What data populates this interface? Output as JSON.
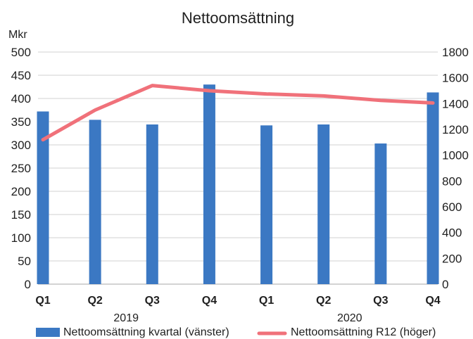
{
  "chart_data": {
    "type": "bar+line",
    "title": "Nettoomsättning",
    "y_left_unit_label": "Mkr",
    "categories": [
      "Q1",
      "Q2",
      "Q3",
      "Q4",
      "Q1",
      "Q2",
      "Q3",
      "Q4"
    ],
    "groups": [
      {
        "label": "2019",
        "from": 0,
        "to": 3
      },
      {
        "label": "2020",
        "from": 4,
        "to": 7
      }
    ],
    "y_left": {
      "min": 0,
      "max": 500,
      "step": 50
    },
    "y_right": {
      "min": 0,
      "max": 1800,
      "step": 200
    },
    "series": [
      {
        "name": "Nettoomsättning kvartal (vänster)",
        "type": "bar",
        "axis": "left",
        "color": "#3b78c3",
        "values": [
          372,
          354,
          344,
          430,
          342,
          344,
          303,
          413
        ]
      },
      {
        "name": "Nettoomsättning R12 (höger)",
        "type": "line",
        "axis": "right",
        "color": "#f0717a",
        "values": [
          1120,
          1350,
          1540,
          1500,
          1475,
          1460,
          1425,
          1405
        ]
      }
    ],
    "legend_position": "bottom",
    "grid": true
  }
}
